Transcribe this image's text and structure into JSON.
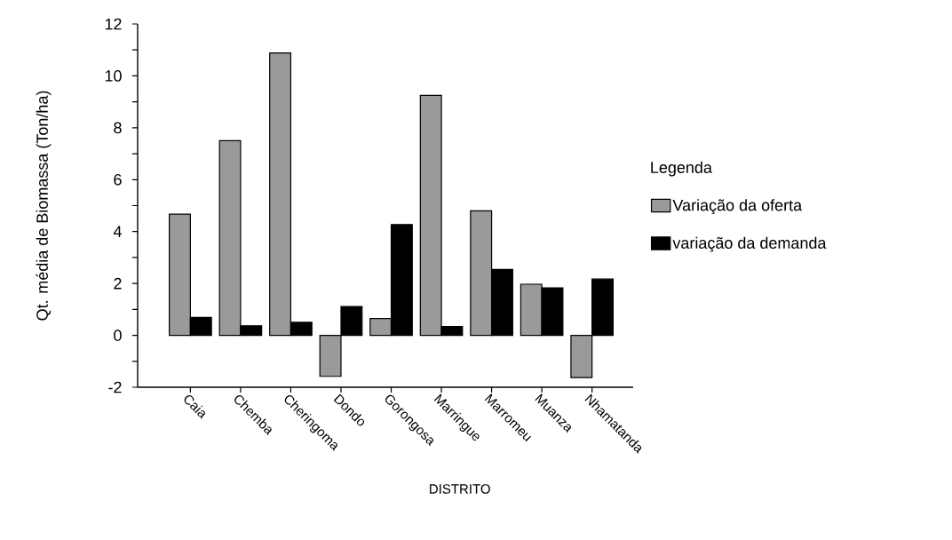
{
  "chart_data": {
    "type": "bar",
    "xlabel": "DISTRITO",
    "ylabel": "Qt. média de Biomassa (Ton/ha)",
    "legend_title": "Legenda",
    "categories": [
      "Caia",
      "Chemba",
      "Cheringoma",
      "Dondo",
      "Gorongosa",
      "Marringue",
      "Marromeu",
      "Muanza",
      "Nhamatanda"
    ],
    "series": [
      {
        "name": "Variação da oferta",
        "color": "#9a9a9a",
        "values": [
          4.67,
          7.5,
          10.88,
          -1.58,
          0.65,
          9.25,
          4.8,
          1.97,
          -1.63
        ]
      },
      {
        "name": "variação da demanda",
        "color": "#000000",
        "values": [
          0.69,
          0.37,
          0.5,
          1.11,
          4.27,
          0.34,
          2.54,
          1.83,
          2.17
        ]
      }
    ],
    "ylim": [
      -2,
      12
    ],
    "yticks": [
      -2,
      {
        "value": -1,
        "label": null
      },
      0,
      {
        "value": 1,
        "label": null
      },
      2,
      {
        "value": 3,
        "label": null
      },
      4,
      {
        "value": 5,
        "label": null
      },
      6,
      {
        "value": 7,
        "label": null
      },
      8,
      {
        "value": 9,
        "label": null
      },
      10,
      {
        "value": 11,
        "label": null
      },
      12
    ],
    "legend": "right",
    "grid": false
  }
}
